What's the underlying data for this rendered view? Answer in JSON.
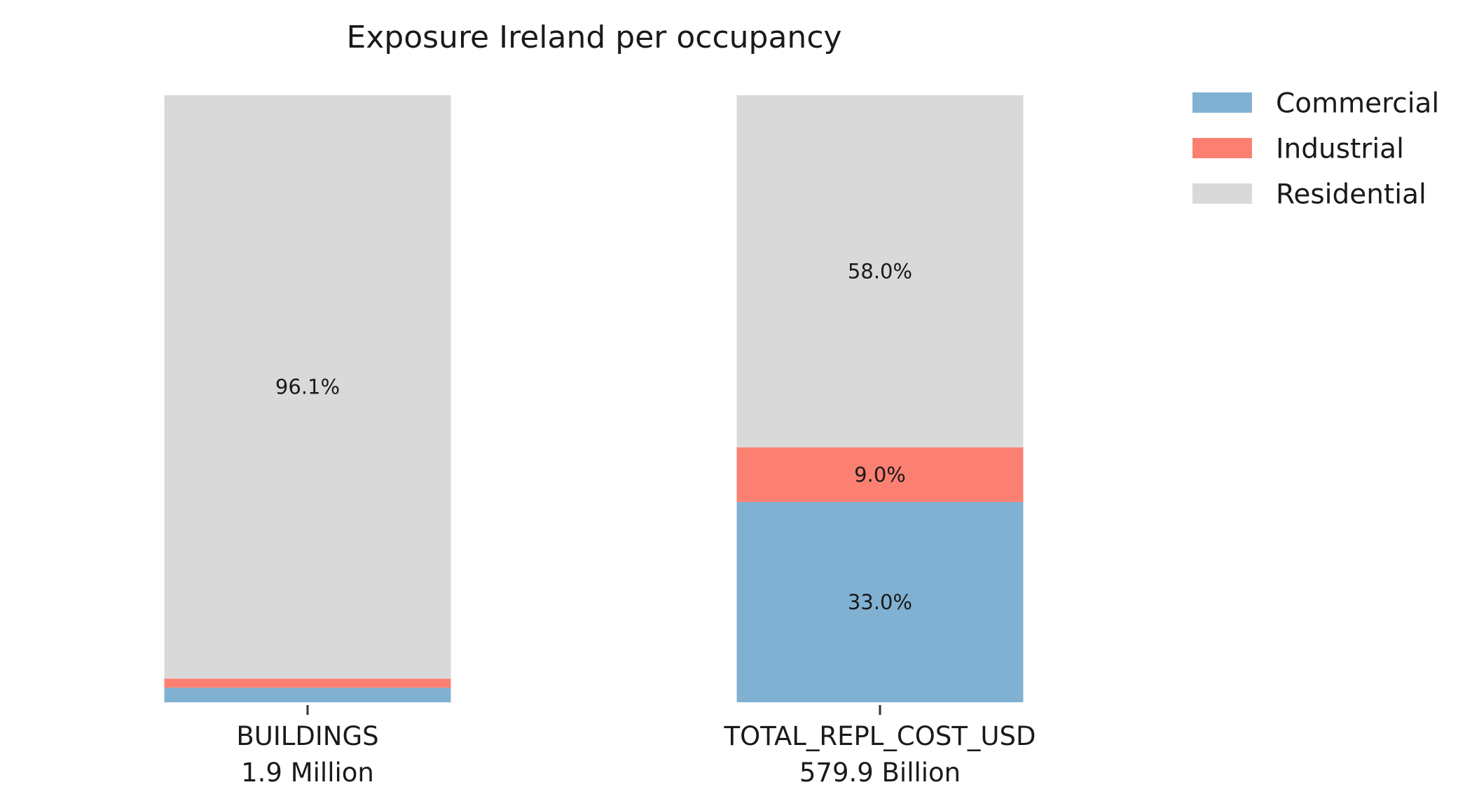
{
  "chart_data": {
    "type": "bar",
    "stacked": true,
    "normalized": true,
    "title": "Exposure Ireland per occupancy",
    "categories": [
      "BUILDINGS",
      "TOTAL_REPL_COST_USD"
    ],
    "category_totals": [
      "1.9 Million",
      "579.9 Billion"
    ],
    "series": [
      {
        "name": "Commercial",
        "color": "#80b1d3",
        "values": [
          2.4,
          33.0
        ],
        "labels": [
          "",
          "33.0%"
        ]
      },
      {
        "name": "Industrial",
        "color": "#fb8072",
        "values": [
          1.5,
          9.0
        ],
        "labels": [
          "",
          "9.0%"
        ]
      },
      {
        "name": "Residential",
        "color": "#d9d9d9",
        "values": [
          96.1,
          58.0
        ],
        "labels": [
          "96.1%",
          "58.0%"
        ]
      }
    ],
    "ylim": [
      0,
      100
    ],
    "xlabel": "",
    "ylabel": "",
    "grid": false,
    "legend_position": "top-right"
  }
}
